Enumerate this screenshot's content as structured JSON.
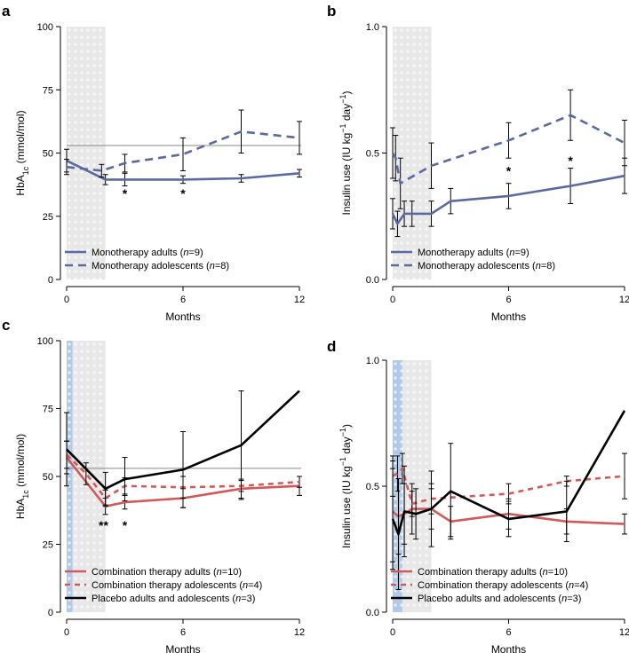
{
  "colors": {
    "mono": "#5b6a9e",
    "combo": "#d05a5a",
    "placebo": "#000000",
    "shade_grey": "#e5e5e5",
    "shade_blue": "#a8c3e8",
    "ref_line": "#888888"
  },
  "chart_data": [
    {
      "type": "line",
      "panel": "a",
      "xlabel": "Months",
      "ylabel": "HbA1c (mmol/mol)",
      "ylabel_parts": [
        "HbA",
        "1c",
        " (mmol/mol)"
      ],
      "xlim": [
        0,
        12
      ],
      "ylim": [
        0,
        100
      ],
      "xticks": [
        0,
        6,
        12
      ],
      "yticks": [
        0,
        25,
        50,
        75,
        100
      ],
      "ytick_labels": [
        "0",
        "25",
        "50",
        "75",
        "100"
      ],
      "reference_line": 53,
      "shaded_regions": [
        {
          "from": 0,
          "to": 2,
          "color": "grey"
        }
      ],
      "series": [
        {
          "name": "Monotherapy adults",
          "n": "9",
          "style": "mono-solid",
          "x": [
            0,
            2,
            3,
            6,
            9,
            12
          ],
          "y": [
            47,
            39.5,
            39.5,
            39.5,
            40,
            42
          ],
          "err": [
            4.5,
            2,
            2.5,
            1.5,
            1.5,
            1.5
          ]
        },
        {
          "name": "Monotherapy adolescents",
          "n": "8",
          "style": "mono-dashed",
          "x": [
            0,
            1.8,
            3,
            6,
            9,
            12
          ],
          "y": [
            44.5,
            43,
            46,
            49.5,
            58.5,
            56
          ],
          "err": [
            3,
            2.5,
            3.5,
            6.5,
            8.5,
            6.5
          ]
        }
      ],
      "annotations": [
        {
          "text": "*",
          "x": 3,
          "y": 34
        },
        {
          "text": "*",
          "x": 6,
          "y": 34
        }
      ]
    },
    {
      "type": "line",
      "panel": "b",
      "xlabel": "Months",
      "ylabel": "Insulin use (IU kg−1 day−1)",
      "ylabel_parts": [
        "Insulin use (IU kg",
        "−1",
        " day",
        "−1",
        ")"
      ],
      "xlim": [
        0,
        12
      ],
      "ylim": [
        0,
        1
      ],
      "xticks": [
        0,
        6,
        12
      ],
      "yticks": [
        0,
        0.5,
        1.0
      ],
      "ytick_labels": [
        "0.0",
        "0.5",
        "1.0"
      ],
      "shaded_regions": [
        {
          "from": 0,
          "to": 2,
          "color": "grey"
        }
      ],
      "series": [
        {
          "name": "Monotherapy adults",
          "n": "9",
          "style": "mono-solid",
          "x": [
            0,
            0.25,
            0.6,
            1,
            2,
            3,
            6,
            9.2,
            12
          ],
          "y": [
            0.26,
            0.22,
            0.26,
            0.26,
            0.26,
            0.31,
            0.33,
            0.37,
            0.41
          ],
          "err": [
            0.06,
            0.05,
            0.05,
            0.05,
            0.05,
            0.05,
            0.05,
            0.07,
            0.07
          ]
        },
        {
          "name": "Monotherapy adolescents",
          "n": "8",
          "style": "mono-dashed",
          "x": [
            0,
            0.15,
            0.4,
            2,
            6,
            9.2,
            12
          ],
          "y": [
            0.5,
            0.48,
            0.38,
            0.45,
            0.55,
            0.65,
            0.54
          ],
          "err": [
            0.1,
            0.09,
            0.1,
            0.09,
            0.07,
            0.1,
            0.09
          ]
        }
      ],
      "annotations": [
        {
          "text": "*",
          "x": 6,
          "y": 0.43
        },
        {
          "text": "*",
          "x": 9.2,
          "y": 0.47
        }
      ]
    },
    {
      "type": "line",
      "panel": "c",
      "xlabel": "Months",
      "ylabel": "HbA1c (mmol/mol)",
      "ylabel_parts": [
        "HbA",
        "1c",
        " (mmol/mol)"
      ],
      "xlim": [
        0,
        12
      ],
      "ylim": [
        0,
        100
      ],
      "xticks": [
        0,
        6,
        12
      ],
      "yticks": [
        0,
        25,
        50,
        75,
        100
      ],
      "ytick_labels": [
        "0",
        "25",
        "50",
        "75",
        "100"
      ],
      "reference_line": 53,
      "shaded_regions": [
        {
          "from": 0,
          "to": 2,
          "color": "grey"
        },
        {
          "from": 0,
          "to": 0.3,
          "color": "blue"
        }
      ],
      "series": [
        {
          "name": "Combination therapy adults",
          "n": "10",
          "style": "combo-solid",
          "x": [
            0,
            2,
            3,
            6,
            9,
            12
          ],
          "y": [
            57,
            39,
            40.5,
            42,
            45.5,
            46.5
          ],
          "err": [
            6,
            3,
            2.5,
            3.5,
            3.5,
            3.5
          ]
        },
        {
          "name": "Combination therapy adolescents",
          "n": "4",
          "style": "combo-dashed",
          "x": [
            0,
            1,
            2,
            3,
            6,
            9,
            12
          ],
          "y": [
            58,
            51,
            42,
            46.5,
            46,
            46.5,
            48
          ],
          "err": [
            5,
            4,
            3,
            3,
            4,
            2,
            2
          ]
        },
        {
          "name": "Placebo adults and adolescents",
          "n": "3",
          "style": "placebo-solid",
          "x": [
            0,
            2,
            3,
            6,
            9,
            12
          ],
          "y": [
            60,
            45.5,
            49,
            52.5,
            61.5,
            81.5
          ],
          "err": [
            13.5,
            6,
            8,
            14,
            20,
            0
          ]
        }
      ],
      "annotations": [
        {
          "text": "**",
          "x": 1.9,
          "y": 32
        },
        {
          "text": "*",
          "x": 3,
          "y": 32
        }
      ]
    },
    {
      "type": "line",
      "panel": "d",
      "xlabel": "Months",
      "ylabel": "Insulin use (IU kg−1 day−1)",
      "ylabel_parts": [
        "Insulin use (IU kg",
        "−1",
        " day",
        "−1",
        ")"
      ],
      "xlim": [
        0,
        12
      ],
      "ylim": [
        0,
        1
      ],
      "xticks": [
        0,
        6,
        12
      ],
      "yticks": [
        0,
        0.5,
        1.0
      ],
      "ytick_labels": [
        "0.0",
        "0.5",
        "1.0"
      ],
      "shaded_regions": [
        {
          "from": 0,
          "to": 2,
          "color": "grey"
        },
        {
          "from": 0,
          "to": 0.5,
          "color": "blue"
        }
      ],
      "series": [
        {
          "name": "Combination therapy adults",
          "n": "10",
          "style": "combo-solid",
          "x": [
            0,
            0.3,
            0.6,
            1,
            2,
            3,
            6,
            9,
            12
          ],
          "y": [
            0.4,
            0.38,
            0.39,
            0.41,
            0.41,
            0.36,
            0.39,
            0.36,
            0.35
          ],
          "err": [
            0.2,
            0.15,
            0.12,
            0.1,
            0.08,
            0.06,
            0.06,
            0.05,
            0.04
          ]
        },
        {
          "name": "Combination therapy adolescents",
          "n": "4",
          "style": "combo-dashed",
          "x": [
            0,
            0.25,
            0.5,
            1,
            2,
            6,
            9,
            12
          ],
          "y": [
            0.54,
            0.55,
            0.57,
            0.43,
            0.45,
            0.47,
            0.52,
            0.54
          ],
          "err": [
            0.08,
            0.07,
            0.06,
            0.05,
            0.06,
            0.04,
            0.02,
            0.09
          ]
        },
        {
          "name": "Placebo adults and adolescents",
          "n": "3",
          "style": "placebo-solid",
          "x": [
            0,
            0.3,
            0.6,
            1.2,
            2,
            3,
            6,
            9,
            12
          ],
          "y": [
            0.37,
            0.31,
            0.4,
            0.39,
            0.41,
            0.48,
            0.37,
            0.4,
            0.8
          ],
          "err": [
            0.2,
            0.22,
            0.18,
            0.1,
            0.15,
            0.19,
            0.07,
            0.12,
            0
          ]
        }
      ],
      "annotations": []
    }
  ]
}
